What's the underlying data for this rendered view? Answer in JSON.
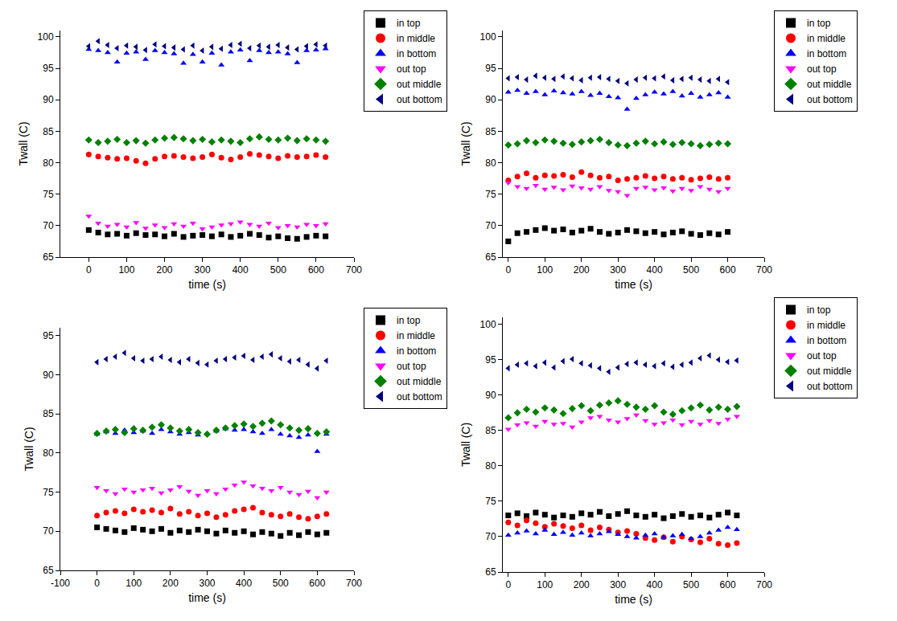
{
  "chart_data": [
    {
      "type": "scatter",
      "x_label": "time (s)",
      "y_label": "Twall (C)",
      "grid": false,
      "legend": "upper right",
      "xlim": [
        -75,
        700
      ],
      "xticks": [
        0,
        100,
        200,
        300,
        400,
        500,
        600,
        700
      ],
      "ylim": [
        65,
        101
      ],
      "yticks": [
        65,
        70,
        75,
        80,
        85,
        90,
        95,
        100
      ],
      "x": [
        0,
        25,
        50,
        75,
        100,
        125,
        150,
        175,
        200,
        225,
        250,
        275,
        300,
        325,
        350,
        375,
        400,
        425,
        450,
        475,
        500,
        525,
        550,
        575,
        600,
        625
      ],
      "series": [
        {
          "name": "in top",
          "color": "#000000",
          "marker": "square",
          "values": [
            69.3,
            68.9,
            68.6,
            68.7,
            68.4,
            68.8,
            68.5,
            68.6,
            68.3,
            68.7,
            68.2,
            68.4,
            68.5,
            68.3,
            68.6,
            68.2,
            68.4,
            68.7,
            68.5,
            68.1,
            68.3,
            68.0,
            67.9,
            68.2,
            68.4,
            68.3
          ]
        },
        {
          "name": "in middle",
          "color": "#ff0000",
          "marker": "circle",
          "values": [
            81.3,
            81.0,
            80.8,
            80.6,
            80.7,
            80.3,
            79.9,
            80.6,
            81.0,
            81.1,
            80.9,
            80.7,
            80.9,
            81.3,
            80.8,
            80.5,
            80.9,
            81.4,
            81.2,
            81.0,
            80.7,
            81.1,
            80.9,
            81.0,
            81.2,
            80.9
          ]
        },
        {
          "name": "in bottom",
          "color": "#0000ff",
          "marker": "triangle-up",
          "values": [
            98.0,
            97.8,
            97.5,
            96.0,
            97.4,
            97.6,
            96.4,
            97.8,
            97.5,
            97.3,
            95.8,
            97.2,
            96.0,
            97.4,
            95.5,
            97.6,
            97.9,
            96.2,
            97.8,
            97.5,
            97.6,
            97.3,
            95.9,
            97.8,
            97.9,
            98.1
          ]
        },
        {
          "name": "out top",
          "color": "#ff00ff",
          "marker": "triangle-down",
          "values": [
            71.5,
            70.4,
            69.9,
            70.2,
            69.8,
            70.5,
            69.6,
            70.1,
            69.7,
            70.3,
            69.9,
            70.4,
            69.5,
            69.8,
            70.1,
            70.3,
            70.6,
            70.2,
            69.9,
            70.4,
            69.7,
            70.0,
            69.8,
            70.2,
            70.0,
            70.3
          ]
        },
        {
          "name": "out middle",
          "color": "#008000",
          "marker": "diamond",
          "values": [
            83.6,
            83.2,
            83.4,
            83.7,
            83.2,
            83.5,
            83.1,
            83.6,
            83.9,
            84.0,
            83.8,
            83.5,
            83.7,
            83.3,
            83.6,
            83.4,
            83.2,
            83.8,
            84.1,
            83.7,
            83.6,
            83.9,
            83.5,
            83.8,
            83.6,
            83.4
          ]
        },
        {
          "name": "out bottom",
          "color": "#000080",
          "marker": "triangle-left",
          "values": [
            98.5,
            99.3,
            98.7,
            98.2,
            98.6,
            98.4,
            97.9,
            98.8,
            98.5,
            98.3,
            98.0,
            98.6,
            97.8,
            98.4,
            98.1,
            98.7,
            98.9,
            98.2,
            98.6,
            98.4,
            98.7,
            98.3,
            98.0,
            98.5,
            98.8,
            98.6
          ]
        }
      ]
    },
    {
      "type": "scatter",
      "x_label": "time (s)",
      "y_label": "Twall (C)",
      "grid": false,
      "legend": "upper right",
      "xlim": [
        -15,
        700
      ],
      "xticks": [
        0,
        100,
        200,
        300,
        400,
        500,
        600,
        700
      ],
      "ylim": [
        65,
        101
      ],
      "yticks": [
        65,
        70,
        75,
        80,
        85,
        90,
        95,
        100
      ],
      "x": [
        0,
        25,
        50,
        75,
        100,
        125,
        150,
        175,
        200,
        225,
        250,
        275,
        300,
        325,
        350,
        375,
        400,
        425,
        450,
        475,
        500,
        525,
        550,
        575,
        600
      ],
      "series": [
        {
          "name": "in top",
          "color": "#000000",
          "marker": "square",
          "values": [
            67.5,
            68.8,
            69.0,
            69.3,
            69.6,
            69.2,
            69.4,
            68.9,
            69.2,
            69.5,
            69.0,
            68.7,
            68.9,
            69.3,
            69.1,
            68.8,
            69.0,
            68.6,
            68.9,
            69.1,
            68.7,
            68.5,
            68.8,
            68.6,
            69.0
          ]
        },
        {
          "name": "in middle",
          "color": "#ff0000",
          "marker": "circle",
          "values": [
            77.2,
            77.8,
            78.3,
            77.6,
            78.0,
            77.9,
            78.1,
            77.7,
            78.5,
            78.0,
            77.6,
            77.8,
            77.2,
            77.4,
            77.6,
            77.9,
            77.5,
            77.8,
            77.4,
            77.6,
            77.3,
            77.5,
            77.7,
            77.4,
            77.6
          ]
        },
        {
          "name": "in bottom",
          "color": "#0000ff",
          "marker": "triangle-up",
          "values": [
            91.2,
            91.5,
            91.0,
            91.3,
            90.8,
            91.4,
            91.1,
            90.9,
            91.3,
            90.7,
            91.0,
            90.5,
            90.3,
            88.5,
            90.2,
            90.8,
            91.2,
            90.9,
            91.3,
            90.6,
            91.0,
            90.4,
            90.8,
            91.1,
            90.4
          ]
        },
        {
          "name": "out top",
          "color": "#ff00ff",
          "marker": "triangle-down",
          "values": [
            76.8,
            76.2,
            75.9,
            76.4,
            75.8,
            76.1,
            75.7,
            76.3,
            76.0,
            75.8,
            76.2,
            75.6,
            75.4,
            74.8,
            75.9,
            76.1,
            75.7,
            76.0,
            75.5,
            75.9,
            75.6,
            76.2,
            75.8,
            75.4,
            75.9
          ]
        },
        {
          "name": "out middle",
          "color": "#008000",
          "marker": "diamond",
          "values": [
            82.8,
            83.0,
            83.5,
            83.2,
            83.6,
            83.4,
            83.1,
            82.9,
            83.3,
            83.5,
            83.7,
            83.2,
            82.8,
            82.7,
            83.1,
            83.4,
            83.0,
            83.3,
            82.9,
            83.2,
            83.0,
            82.7,
            82.9,
            83.1,
            83.0
          ]
        },
        {
          "name": "out bottom",
          "color": "#000080",
          "marker": "triangle-left",
          "values": [
            93.4,
            93.6,
            93.2,
            93.8,
            93.5,
            93.3,
            93.7,
            93.4,
            93.1,
            93.5,
            93.6,
            93.3,
            93.0,
            92.6,
            93.2,
            93.5,
            93.4,
            93.7,
            93.1,
            93.3,
            93.5,
            93.2,
            93.0,
            93.3,
            92.8
          ]
        }
      ]
    },
    {
      "type": "scatter",
      "x_label": "time (s)",
      "y_label": "Twall (C)",
      "grid": false,
      "legend": "upper right",
      "xlim": [
        -100,
        700
      ],
      "xticks": [
        -100,
        0,
        100,
        200,
        300,
        400,
        500,
        600,
        700
      ],
      "ylim": [
        65,
        96
      ],
      "yticks": [
        65,
        70,
        75,
        80,
        85,
        90,
        95
      ],
      "x": [
        0,
        25,
        50,
        75,
        100,
        125,
        150,
        175,
        200,
        225,
        250,
        275,
        300,
        325,
        350,
        375,
        400,
        425,
        450,
        475,
        500,
        525,
        550,
        575,
        600,
        625
      ],
      "series": [
        {
          "name": "in top",
          "color": "#000000",
          "marker": "square",
          "values": [
            70.5,
            70.3,
            70.1,
            69.9,
            70.4,
            70.2,
            70.0,
            70.3,
            69.8,
            70.1,
            69.9,
            70.2,
            70.0,
            69.7,
            70.1,
            69.8,
            70.0,
            69.6,
            69.9,
            69.7,
            69.4,
            69.8,
            69.5,
            69.9,
            69.6,
            69.8
          ]
        },
        {
          "name": "in middle",
          "color": "#ff0000",
          "marker": "circle",
          "values": [
            72.0,
            72.4,
            72.6,
            72.3,
            72.8,
            72.5,
            72.7,
            72.4,
            72.9,
            72.2,
            72.5,
            72.0,
            72.3,
            71.8,
            72.1,
            72.6,
            72.8,
            73.0,
            72.4,
            72.1,
            71.9,
            72.2,
            71.8,
            71.6,
            71.9,
            72.2
          ]
        },
        {
          "name": "in bottom",
          "color": "#0000ff",
          "marker": "triangle-up",
          "values": [
            82.4,
            82.7,
            82.5,
            82.9,
            82.6,
            82.8,
            82.5,
            83.0,
            82.7,
            82.4,
            82.6,
            82.3,
            82.5,
            82.8,
            83.1,
            82.9,
            83.0,
            82.7,
            82.5,
            83.0,
            82.4,
            82.2,
            82.0,
            82.3,
            80.2,
            82.4
          ]
        },
        {
          "name": "out top",
          "color": "#ff00ff",
          "marker": "triangle-down",
          "values": [
            75.6,
            75.2,
            74.8,
            75.4,
            75.0,
            75.3,
            75.5,
            74.9,
            75.3,
            75.7,
            75.1,
            74.6,
            75.2,
            74.8,
            75.4,
            75.9,
            76.3,
            75.8,
            75.5,
            75.2,
            75.6,
            75.0,
            74.7,
            75.1,
            74.3,
            75.0
          ]
        },
        {
          "name": "out middle",
          "color": "#008000",
          "marker": "diamond",
          "values": [
            82.5,
            82.8,
            83.0,
            82.6,
            83.1,
            82.9,
            83.3,
            83.6,
            83.2,
            82.8,
            83.0,
            82.6,
            82.4,
            82.9,
            83.2,
            83.5,
            83.7,
            83.4,
            83.8,
            84.1,
            83.6,
            83.2,
            82.9,
            83.1,
            82.5,
            82.7
          ]
        },
        {
          "name": "out bottom",
          "color": "#000080",
          "marker": "triangle-left",
          "values": [
            91.6,
            92.0,
            92.3,
            92.8,
            92.1,
            91.8,
            92.0,
            92.3,
            91.9,
            91.6,
            92.0,
            91.5,
            91.3,
            91.8,
            92.0,
            92.2,
            92.4,
            91.9,
            92.3,
            92.6,
            92.1,
            91.7,
            91.9,
            91.3,
            90.8,
            91.8
          ]
        }
      ]
    },
    {
      "type": "scatter",
      "x_label": "time (s)",
      "y_label": "Twall (C)",
      "grid": false,
      "legend": "upper right",
      "xlim": [
        -15,
        700
      ],
      "xticks": [
        0,
        100,
        200,
        300,
        400,
        500,
        600,
        700
      ],
      "ylim": [
        65,
        101
      ],
      "yticks": [
        65,
        70,
        75,
        80,
        85,
        90,
        95,
        100
      ],
      "x": [
        0,
        25,
        50,
        75,
        100,
        125,
        150,
        175,
        200,
        225,
        250,
        275,
        300,
        325,
        350,
        375,
        400,
        425,
        450,
        475,
        500,
        525,
        550,
        575,
        600,
        625
      ],
      "series": [
        {
          "name": "in top",
          "color": "#000000",
          "marker": "square",
          "values": [
            73.0,
            73.3,
            72.9,
            73.4,
            73.1,
            72.7,
            73.0,
            72.8,
            73.3,
            73.1,
            73.5,
            72.9,
            73.2,
            73.6,
            73.0,
            72.8,
            73.1,
            72.6,
            72.9,
            73.2,
            72.8,
            73.0,
            72.7,
            73.1,
            73.4,
            73.0
          ]
        },
        {
          "name": "in middle",
          "color": "#ff0000",
          "marker": "circle",
          "values": [
            72.0,
            71.6,
            72.3,
            71.9,
            71.4,
            71.8,
            71.5,
            71.2,
            71.6,
            70.9,
            71.3,
            71.0,
            70.6,
            70.8,
            70.4,
            69.8,
            69.5,
            69.9,
            69.3,
            70.0,
            69.6,
            69.2,
            69.7,
            69.0,
            68.8,
            69.1
          ]
        },
        {
          "name": "in bottom",
          "color": "#0000ff",
          "marker": "triangle-up",
          "values": [
            70.2,
            70.5,
            70.8,
            70.4,
            70.9,
            70.3,
            70.6,
            70.2,
            70.5,
            70.1,
            70.4,
            70.7,
            70.3,
            70.0,
            69.8,
            70.2,
            70.4,
            69.9,
            70.1,
            70.3,
            69.7,
            70.0,
            70.5,
            70.9,
            71.3,
            71.0
          ]
        },
        {
          "name": "out top",
          "color": "#ff00ff",
          "marker": "triangle-down",
          "values": [
            85.2,
            85.8,
            86.1,
            85.6,
            86.3,
            85.9,
            86.0,
            85.5,
            86.2,
            86.8,
            87.0,
            86.5,
            86.2,
            86.7,
            87.2,
            86.4,
            85.9,
            86.1,
            86.5,
            85.8,
            86.3,
            85.9,
            86.4,
            86.0,
            86.6,
            87.0
          ]
        },
        {
          "name": "out middle",
          "color": "#008000",
          "marker": "diamond",
          "values": [
            86.8,
            87.5,
            88.0,
            87.6,
            88.2,
            87.9,
            87.4,
            88.1,
            88.5,
            87.8,
            88.6,
            88.9,
            89.2,
            88.7,
            88.3,
            88.0,
            88.5,
            87.6,
            87.3,
            87.8,
            88.2,
            88.6,
            87.9,
            88.3,
            88.0,
            88.4
          ]
        },
        {
          "name": "out bottom",
          "color": "#000080",
          "marker": "triangle-left",
          "values": [
            93.8,
            94.3,
            94.5,
            94.1,
            94.6,
            93.9,
            94.8,
            95.1,
            94.5,
            94.2,
            93.8,
            93.3,
            93.9,
            94.4,
            94.6,
            94.3,
            94.1,
            94.5,
            94.0,
            94.3,
            94.6,
            95.2,
            95.6,
            95.0,
            94.7,
            94.9
          ]
        }
      ]
    }
  ]
}
